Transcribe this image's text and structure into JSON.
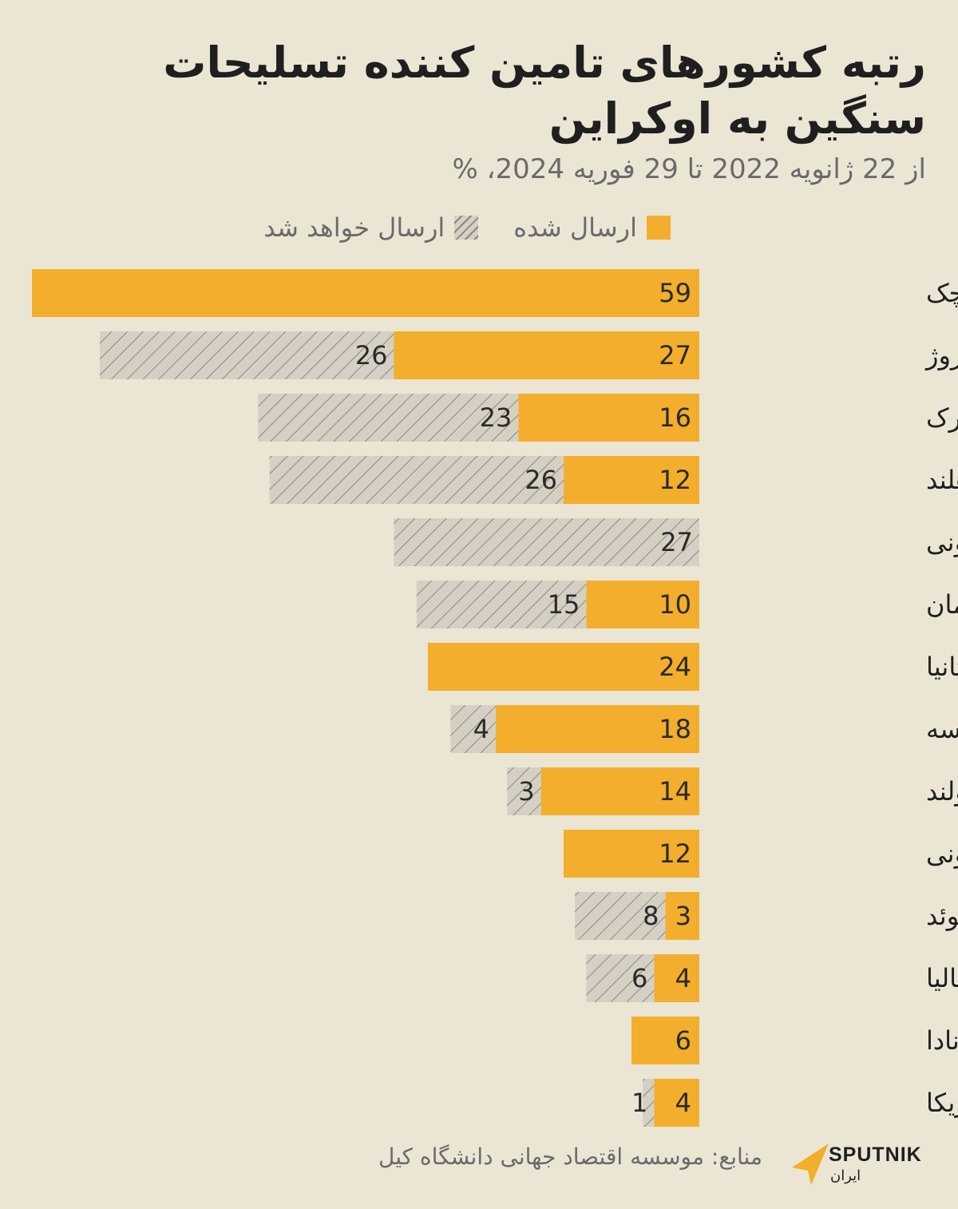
{
  "title": "رتبه کشورهای تامین کننده تسلیحات سنگین به اوکراین",
  "subtitle": "از 22 ژانویه 2022 تا 29 فوریه 2024، %",
  "legend": {
    "delivered": "ارسال شده",
    "pending": "ارسال خواهد شد"
  },
  "colors": {
    "background": "#ebe6d4",
    "delivered": "#f2ae2c",
    "pending": "#d5d0c3",
    "hatch": "#8b8880"
  },
  "chart_data": {
    "type": "bar",
    "orientation": "horizontal",
    "stacked": true,
    "categories": [
      "چک",
      "نروژ",
      "دانمارک",
      "هلند",
      "استونی",
      "آلمان",
      "بریتانیا",
      "فرانسه",
      "پولند",
      "اسلوونی",
      "سوئد",
      "ایتالیا",
      "کانادا",
      "آمریکا"
    ],
    "series": [
      {
        "name": "ارسال شده",
        "values": [
          59,
          27,
          16,
          12,
          0,
          10,
          24,
          18,
          14,
          12,
          3,
          4,
          6,
          4
        ]
      },
      {
        "name": "ارسال خواهد شد",
        "values": [
          0,
          26,
          23,
          26,
          27,
          15,
          0,
          4,
          3,
          0,
          8,
          6,
          0,
          1
        ]
      }
    ],
    "xlim": [
      0,
      59
    ],
    "grid": false,
    "legend_position": "top"
  },
  "footer": {
    "source": "منابع: موسسه اقتصاد جهانی دانشگاه کیل",
    "logo_name": "SPUTNIK",
    "logo_sub": "ایران"
  }
}
